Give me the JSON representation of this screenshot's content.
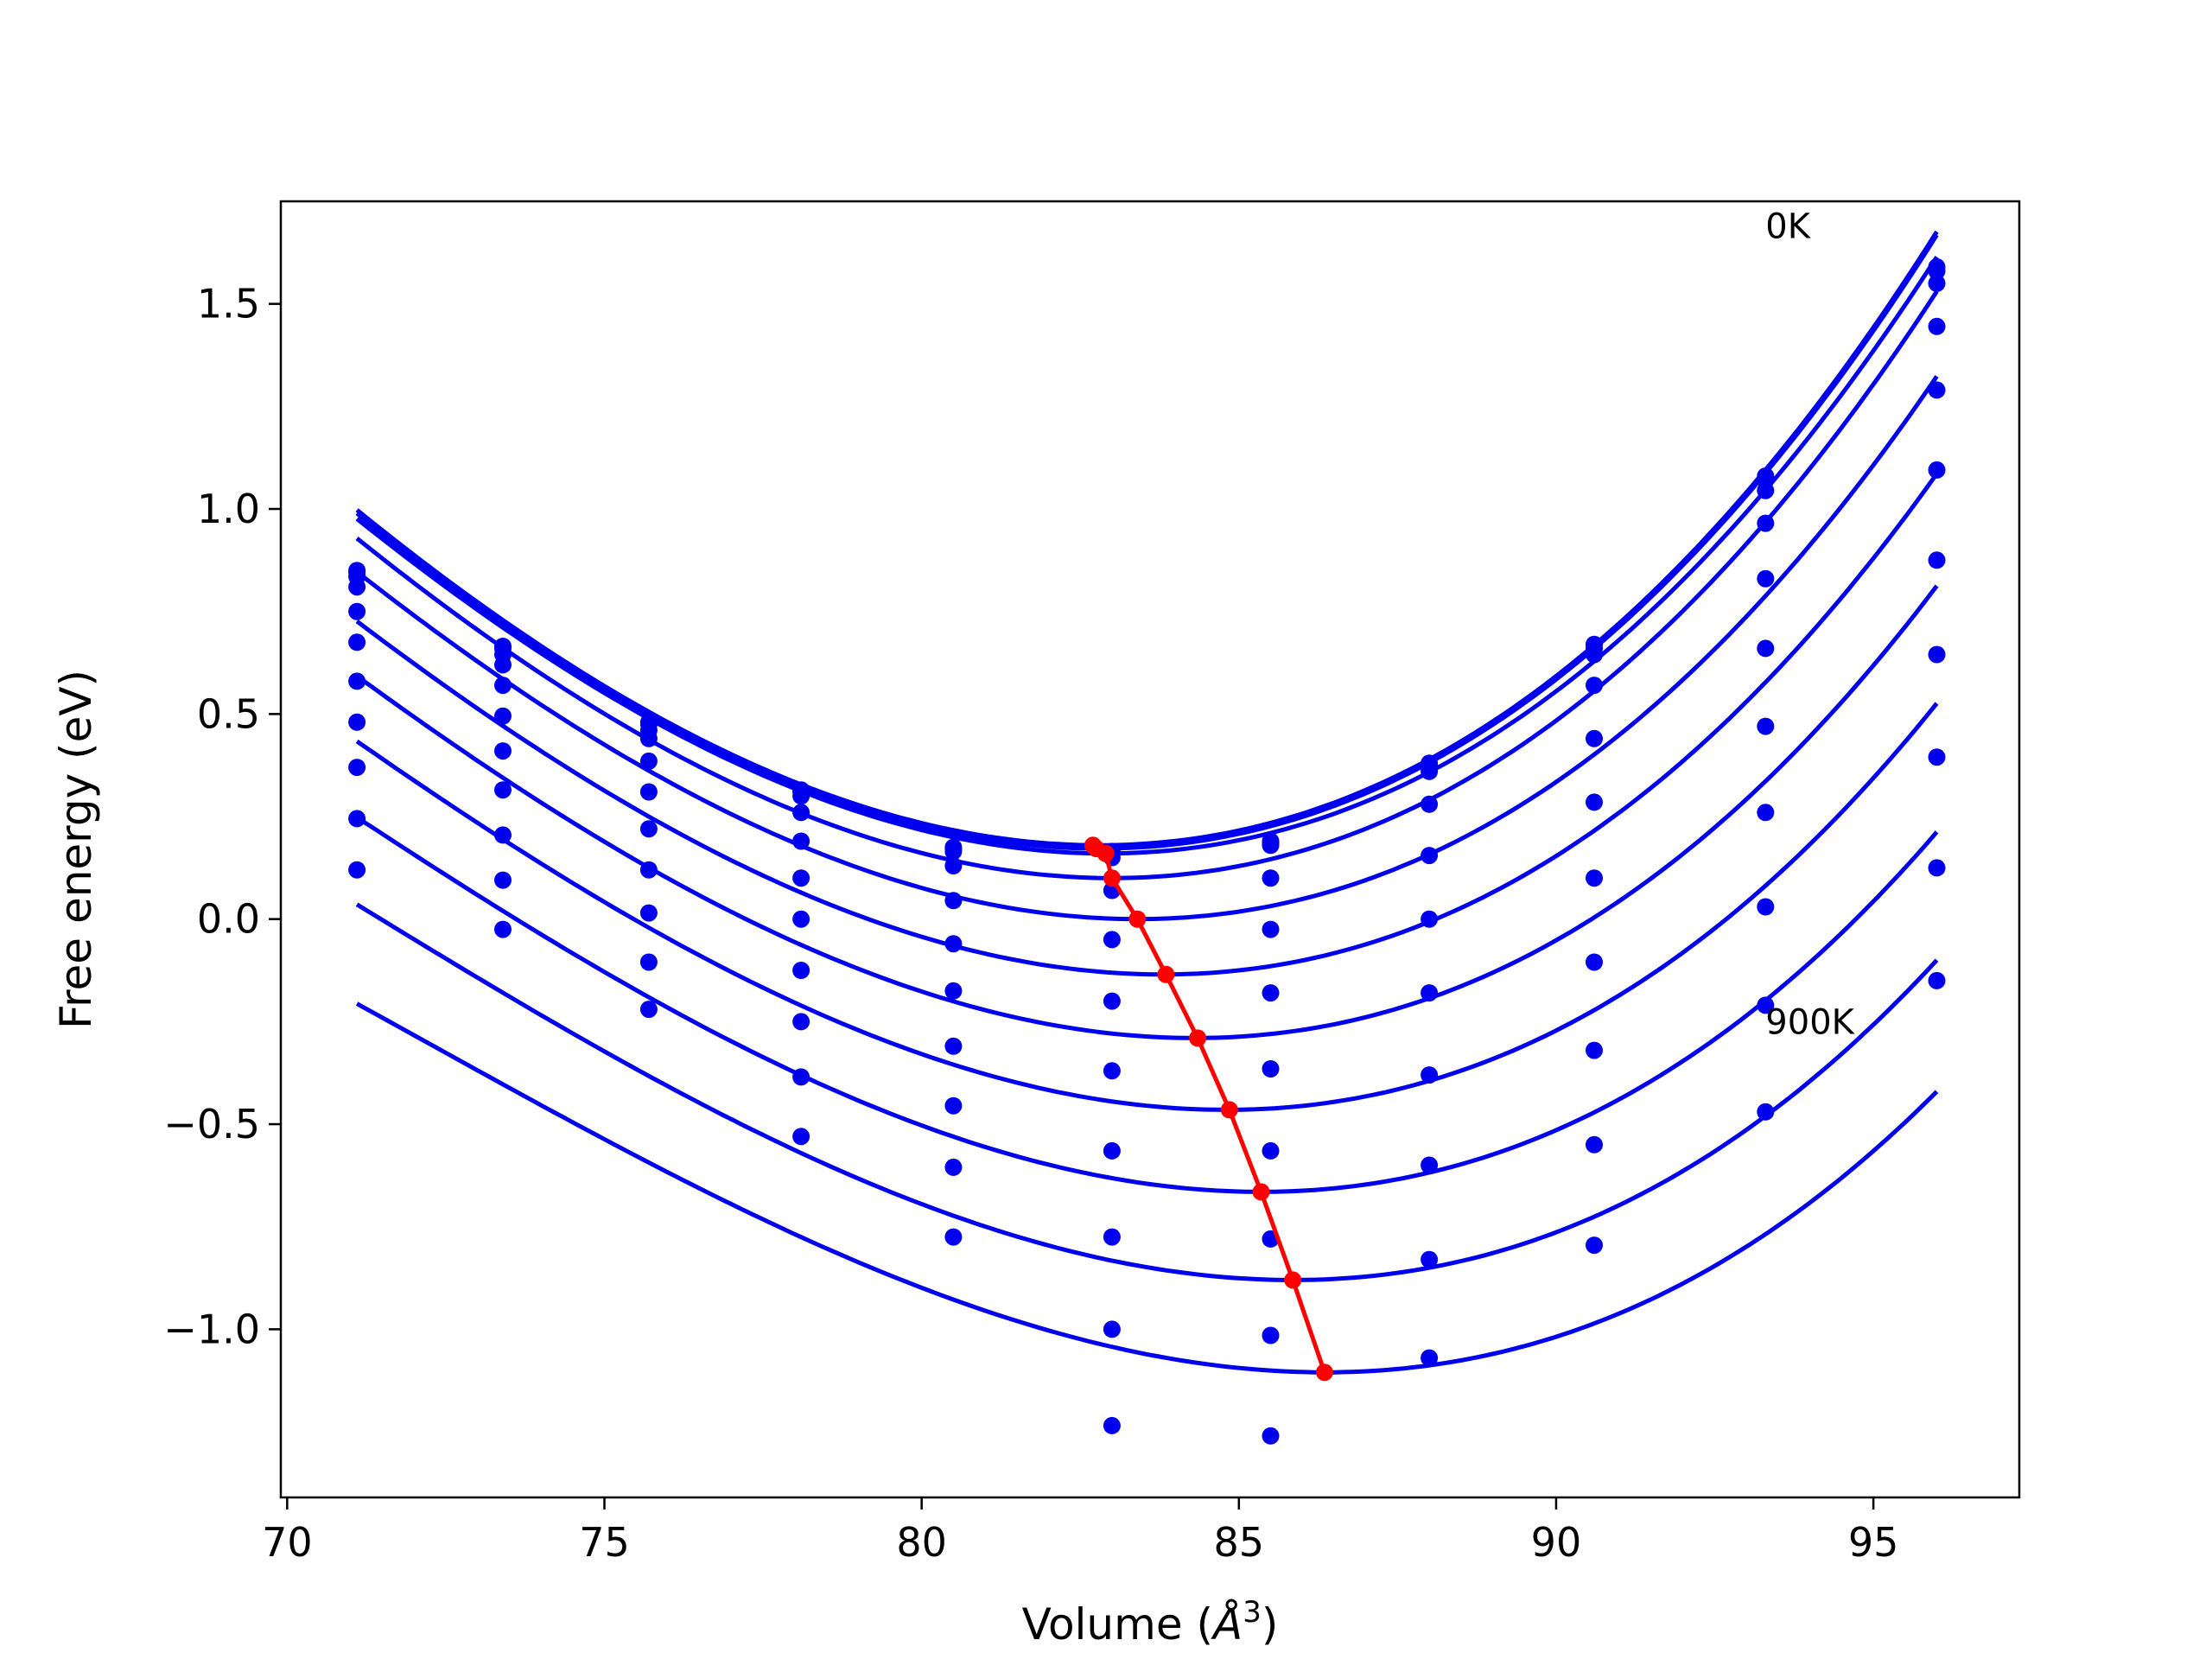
{
  "chart_data": {
    "type": "line",
    "title": "",
    "xlabel": "Volume (",
    "xlabel_symbol": "Å",
    "xlabel_exponent": "3",
    "xlabel_close": ")",
    "ylabel": "Free energy (eV)",
    "xlim": [
      69.9,
      97.3
    ],
    "ylim": [
      -1.41,
      1.75
    ],
    "xticks": [
      70,
      75,
      80,
      85,
      90,
      95
    ],
    "xtick_labels": [
      "70",
      "75",
      "80",
      "85",
      "90",
      "95"
    ],
    "yticks": [
      -1.0,
      -0.5,
      0.0,
      0.5,
      1.0,
      1.5
    ],
    "ytick_labels": [
      "−1.0",
      "−0.5",
      "0.0",
      "0.5",
      "1.0",
      "1.5"
    ],
    "grid": false,
    "annotations": [
      {
        "text": "0K",
        "x": 93.3,
        "y": 1.66
      },
      {
        "text": "900K",
        "x": 93.3,
        "y": -0.28
      }
    ],
    "colors": {
      "curves": "#0000ee",
      "points": "#0000ee",
      "minimum_path": "#ff0000",
      "axes": "#000000"
    },
    "volumes": [
      71.1,
      73.4,
      75.7,
      78.1,
      80.5,
      83.0,
      85.5,
      88.0,
      90.6,
      93.3,
      96.0
    ],
    "series": [
      {
        "values": [
          0.85,
          0.665,
          0.48,
          0.315,
          0.175,
          0.165,
          0.19,
          0.38,
          0.67,
          1.08,
          1.59
        ],
        "fit": {
          "vmin": 82.8,
          "fmin": 0.18,
          "a": 0.0072,
          "b": 0.000105
        }
      },
      {
        "values": [
          0.845,
          0.66,
          0.475,
          0.31,
          0.17,
          0.16,
          0.185,
          0.375,
          0.66,
          1.07,
          1.58
        ],
        "fit": {
          "vmin": 82.8,
          "fmin": 0.172,
          "a": 0.0072,
          "b": 0.000105
        }
      },
      {
        "values": [
          0.835,
          0.645,
          0.46,
          0.3,
          0.165,
          0.15,
          0.18,
          0.36,
          0.645,
          1.045,
          1.55
        ],
        "fit": {
          "vmin": 82.9,
          "fmin": 0.16,
          "a": 0.0071,
          "b": 0.000105
        }
      },
      {
        "values": [
          0.81,
          0.62,
          0.44,
          0.26,
          0.13,
          0.07,
          0.1,
          0.28,
          0.57,
          0.965,
          1.445
        ],
        "fit": {
          "vmin": 83.0,
          "fmin": 0.1,
          "a": 0.0071,
          "b": 0.000105
        }
      },
      {
        "values": [
          0.75,
          0.57,
          0.385,
          0.19,
          0.045,
          -0.05,
          -0.025,
          0.155,
          0.44,
          0.83,
          1.29
        ],
        "fit": {
          "vmin": 83.4,
          "fmin": 0.0,
          "a": 0.00695,
          "b": 0.00011
        }
      },
      {
        "values": [
          0.675,
          0.495,
          0.31,
          0.1,
          -0.06,
          -0.2,
          -0.18,
          0.0,
          0.285,
          0.66,
          1.095
        ],
        "fit": {
          "vmin": 83.8,
          "fmin": -0.135,
          "a": 0.0068,
          "b": 0.000115
        }
      },
      {
        "values": [
          0.58,
          0.41,
          0.22,
          0.0,
          -0.175,
          -0.37,
          -0.365,
          -0.18,
          0.1,
          0.47,
          0.875
        ],
        "fit": {
          "vmin": 84.3,
          "fmin": -0.29,
          "a": 0.00665,
          "b": 0.00012
        }
      },
      {
        "values": [
          0.48,
          0.315,
          0.12,
          -0.125,
          -0.31,
          -0.565,
          -0.565,
          -0.38,
          -0.105,
          0.26,
          0.645
        ],
        "fit": {
          "vmin": 84.8,
          "fmin": -0.465,
          "a": 0.0065,
          "b": 0.000125
        }
      },
      {
        "values": [
          0.37,
          0.205,
          0.015,
          -0.25,
          -0.455,
          -0.775,
          -0.78,
          -0.6,
          -0.32,
          0.03,
          0.395
        ],
        "fit": {
          "vmin": 85.35,
          "fmin": -0.665,
          "a": 0.00635,
          "b": 0.00013
        }
      },
      {
        "values": [
          0.245,
          0.095,
          -0.105,
          -0.385,
          -0.605,
          -1.0,
          -1.015,
          -0.83,
          -0.55,
          -0.21,
          0.125
        ],
        "fit": {
          "vmin": 85.85,
          "fmin": -0.88,
          "a": 0.0062,
          "b": 0.000135
        }
      },
      {
        "values": [
          0.12,
          -0.025,
          -0.22,
          -0.53,
          -0.775,
          -1.235,
          -1.26,
          -1.07,
          -0.795,
          -0.47,
          -0.15
        ],
        "fit": {
          "vmin": 86.35,
          "fmin": -1.105,
          "a": 0.006,
          "b": 0.00014
        }
      }
    ],
    "minimum_path": {
      "x": [
        82.7,
        82.75,
        82.9,
        83.0,
        83.4,
        83.85,
        84.35,
        84.85,
        85.35,
        85.85,
        86.35
      ],
      "y": [
        0.18,
        0.172,
        0.16,
        0.1,
        0.0,
        -0.135,
        -0.29,
        -0.465,
        -0.665,
        -0.88,
        -1.105
      ]
    }
  }
}
